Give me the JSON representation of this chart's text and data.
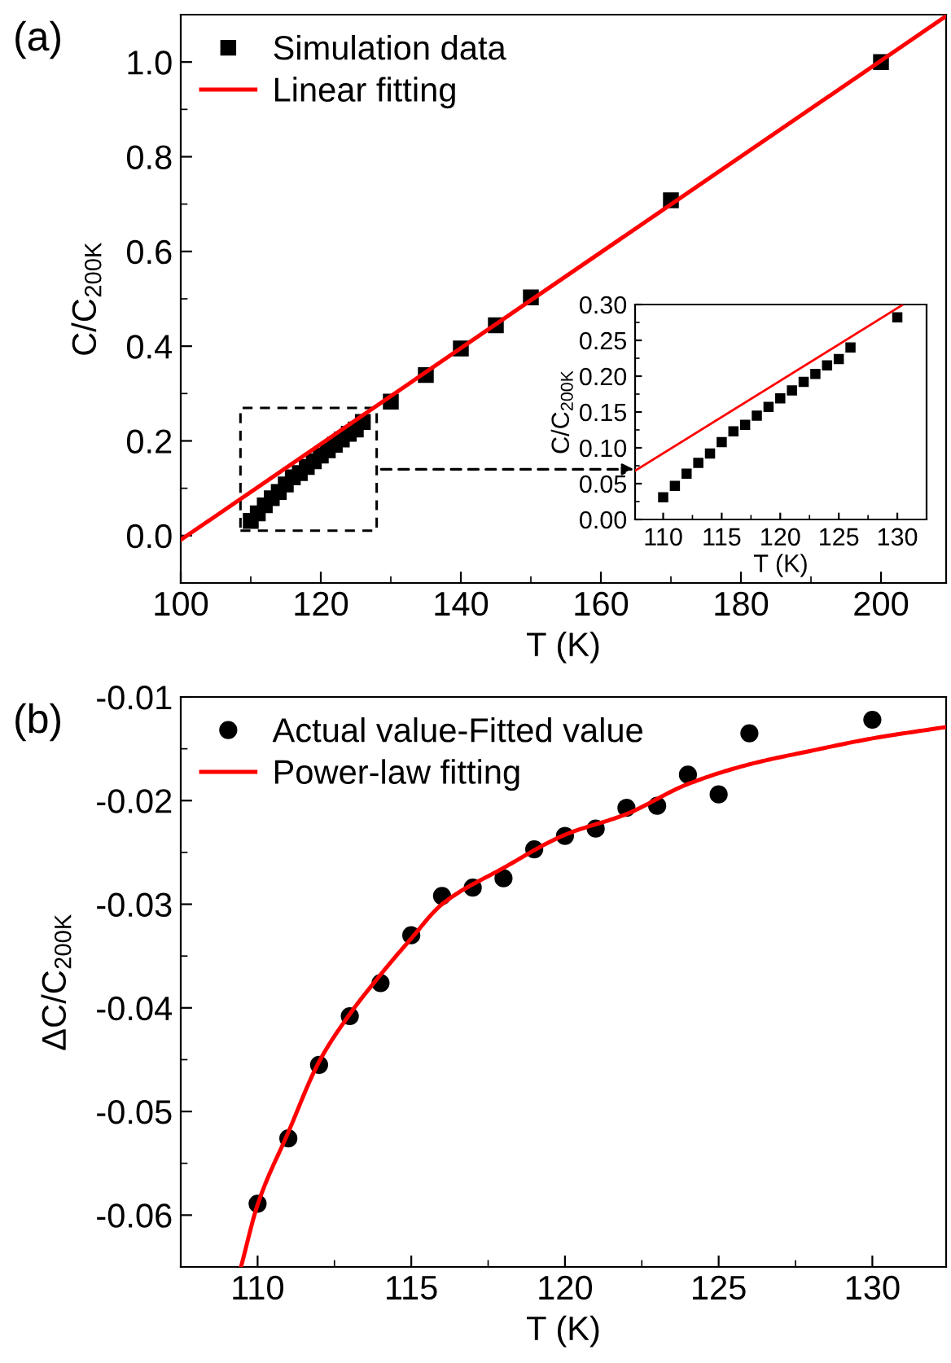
{
  "chart_data": [
    {
      "type": "scatter",
      "title": "(a)",
      "xlabel": "T (K)",
      "ylabel": "C/C$_{200K}$",
      "xlim": [
        100,
        209.3
      ],
      "ylim": [
        -0.1,
        1.1
      ],
      "xticks": [
        100,
        120,
        140,
        160,
        180,
        200
      ],
      "yticks": [
        {
          "value": 0,
          "label": "0.0"
        },
        {
          "value": 0.2,
          "label": "0.2"
        },
        {
          "value": 0.4,
          "label": "0.4"
        },
        {
          "value": 0.6,
          "label": "0.6"
        },
        {
          "value": 0.8,
          "label": "0.8"
        },
        {
          "value": 1.0,
          "label": "1.0"
        }
      ],
      "legend": "top left",
      "grid": false,
      "series": [
        {
          "name": "Simulation data",
          "marker": "square",
          "color": "#000000",
          "x": [
            110,
            111,
            112,
            113,
            114,
            115,
            116,
            117,
            118,
            119,
            120,
            121,
            122,
            123,
            124,
            125,
            126,
            130,
            135,
            140,
            145,
            150,
            170,
            200
          ],
          "values": [
            0.031,
            0.047,
            0.064,
            0.079,
            0.092,
            0.108,
            0.123,
            0.132,
            0.145,
            0.157,
            0.169,
            0.18,
            0.192,
            0.203,
            0.215,
            0.224,
            0.24,
            0.283,
            0.339,
            0.395,
            0.444,
            0.503,
            0.708,
            1.0
          ]
        },
        {
          "name": "Linear fitting",
          "type": "line",
          "marker": "none",
          "line_style": "solid",
          "color": "#ff0000",
          "x": [
            100,
            209.3
          ],
          "values": [
            -0.009,
            1.097
          ]
        }
      ]
    },
    {
      "type": "scatter",
      "xlabel": "T (K)",
      "ylabel": "C/C$_{200K}$",
      "xlim": [
        107.6,
        132.5
      ],
      "ylim": [
        0,
        0.3
      ],
      "xticks": [
        110,
        115,
        120,
        125,
        130
      ],
      "yticks": [
        {
          "value": 0,
          "label": "0.00"
        },
        {
          "value": 0.05,
          "label": "0.05"
        },
        {
          "value": 0.1,
          "label": "0.10"
        },
        {
          "value": 0.15,
          "label": "0.15"
        },
        {
          "value": 0.2,
          "label": "0.20"
        },
        {
          "value": 0.25,
          "label": "0.25"
        },
        {
          "value": 0.3,
          "label": "0.30"
        }
      ],
      "legend": false,
      "grid": false,
      "series": [
        {
          "marker": "square",
          "color": "#000000",
          "x": [
            110,
            111,
            112,
            113,
            114,
            115,
            116,
            117,
            118,
            119,
            120,
            121,
            122,
            123,
            124,
            125,
            126,
            130
          ],
          "values": [
            0.031,
            0.047,
            0.064,
            0.079,
            0.092,
            0.108,
            0.123,
            0.132,
            0.145,
            0.157,
            0.169,
            0.18,
            0.192,
            0.203,
            0.215,
            0.224,
            0.24,
            0.282
          ]
        },
        {
          "type": "line",
          "marker": "none",
          "line_style": "solid",
          "color": "#ff0000",
          "x": [
            107.6,
            130.4
          ],
          "values": [
            0.068,
            0.299
          ]
        }
      ]
    },
    {
      "type": "scatter",
      "title": "(b)",
      "xlabel": "T (K)",
      "ylabel": "ΔC/C$_{200K}$",
      "xlim": [
        107.5,
        132.4
      ],
      "ylim": [
        -0.065,
        -0.01
      ],
      "xticks": [
        110,
        115,
        120,
        125,
        130
      ],
      "yticks": [
        {
          "value": -0.06,
          "label": "-0.06"
        },
        {
          "value": -0.05,
          "label": "-0.05"
        },
        {
          "value": -0.04,
          "label": "-0.04"
        },
        {
          "value": -0.03,
          "label": "-0.03"
        },
        {
          "value": -0.02,
          "label": "-0.02"
        },
        {
          "value": -0.01,
          "label": "-0.01"
        }
      ],
      "legend": "top left",
      "grid": false,
      "series": [
        {
          "name": "Actual value-Fitted value",
          "marker": "circle",
          "color": "#000000",
          "x": [
            110,
            111,
            112,
            113,
            114,
            115,
            116,
            117,
            118,
            119,
            120,
            121,
            122,
            123,
            124,
            125,
            126,
            130
          ],
          "values": [
            -0.0589,
            -0.0526,
            -0.0455,
            -0.0408,
            -0.0376,
            -0.033,
            -0.0292,
            -0.0284,
            -0.0275,
            -0.0247,
            -0.0234,
            -0.0227,
            -0.0207,
            -0.0205,
            -0.0175,
            -0.0194,
            -0.0135,
            -0.0122
          ]
        },
        {
          "name": "Power-law fitting",
          "type": "line",
          "marker": "none",
          "line_style": "solid",
          "color": "#ff0000",
          "x": [
            109.46,
            110,
            111,
            112,
            113,
            114,
            115,
            116,
            118,
            120,
            122,
            124,
            126,
            128,
            130,
            132.4
          ],
          "values": [
            -0.065,
            -0.059,
            -0.052,
            -0.0452,
            -0.0406,
            -0.0368,
            -0.0333,
            -0.03,
            -0.0265,
            -0.0233,
            -0.0213,
            -0.0184,
            -0.0165,
            -0.0152,
            -0.014,
            -0.0129
          ]
        }
      ]
    }
  ]
}
